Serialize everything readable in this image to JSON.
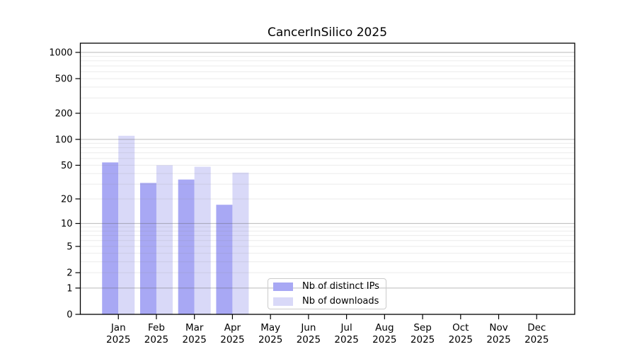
{
  "chart_data": {
    "type": "bar",
    "title": "CancerInSilico 2025",
    "categories": [
      "Jan",
      "Feb",
      "Mar",
      "Apr",
      "May",
      "Jun",
      "Jul",
      "Aug",
      "Sep",
      "Oct",
      "Nov",
      "Dec"
    ],
    "category_year": "2025",
    "series": [
      {
        "name": "Nb of distinct IPs",
        "color": "#a8a8f4",
        "values": [
          54,
          31,
          34,
          17,
          0,
          0,
          0,
          0,
          0,
          0,
          0,
          0
        ]
      },
      {
        "name": "Nb of downloads",
        "color": "#d9d9f8",
        "values": [
          110,
          50,
          48,
          41,
          0,
          0,
          0,
          0,
          0,
          0,
          0,
          0
        ]
      }
    ],
    "y_scale": "log1p",
    "ylim": [
      0,
      1000
    ],
    "y_ticks": [
      0,
      1,
      2,
      5,
      10,
      20,
      50,
      100,
      200,
      500,
      1000
    ],
    "y_major_gridlines": [
      1,
      10,
      100,
      1000
    ],
    "y_minor_gridlines": [
      2,
      3,
      4,
      5,
      6,
      7,
      8,
      9,
      20,
      30,
      40,
      50,
      60,
      70,
      80,
      90,
      200,
      300,
      400,
      500,
      600,
      700,
      800,
      900
    ],
    "grid": "horizontal",
    "legend_position": "inside-bottom-center-left",
    "colors": {
      "distinct_ips_bar": "#a8a8f4",
      "downloads_bar": "#d9d9f8",
      "major_gridline": "#c2c2c2",
      "minor_gridline": "#ececec",
      "axis": "#000000"
    }
  }
}
